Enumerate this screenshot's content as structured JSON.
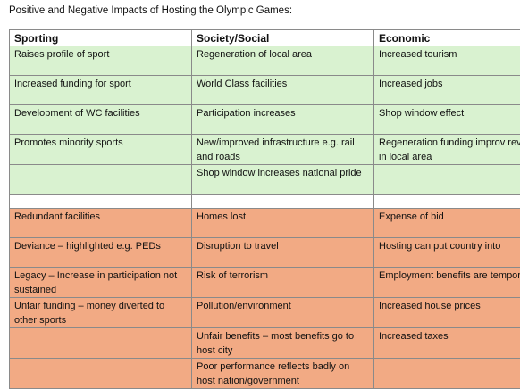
{
  "header": {
    "title": "Positive and Negative Impacts of Hosting the Olympic Games:"
  },
  "table": {
    "columns": [
      "Sporting",
      "Society/Social",
      "Economic"
    ],
    "positive_rows": [
      [
        "Raises profile of sport",
        "Regeneration of local area",
        "Increased tourism"
      ],
      [
        "Increased funding for sport",
        "World Class facilities",
        "Increased jobs"
      ],
      [
        "Development of WC facilities",
        "Participation increases",
        "Shop window effect"
      ],
      [
        "Promotes minority sports",
        "New/improved infrastructure e.g. rail and roads",
        "Regeneration funding improv revenue in local area"
      ],
      [
        null,
        "Shop window increases national pride",
        null
      ]
    ],
    "negative_rows": [
      [
        "Redundant facilities",
        "Homes lost",
        "Expense of bid"
      ],
      [
        "Deviance – highlighted e.g. PEDs",
        "Disruption to travel",
        "Hosting can put country into"
      ],
      [
        "Legacy – Increase in participation not sustained",
        "Risk of terrorism",
        "Employment benefits are temporary"
      ],
      [
        "Unfair funding – money diverted to other sports",
        "Pollution/environment",
        "Increased house prices"
      ],
      [
        null,
        "Unfair benefits – most benefits go to host city",
        "Increased taxes"
      ],
      [
        null,
        "Poor performance reflects badly on host nation/government",
        null
      ]
    ]
  }
}
